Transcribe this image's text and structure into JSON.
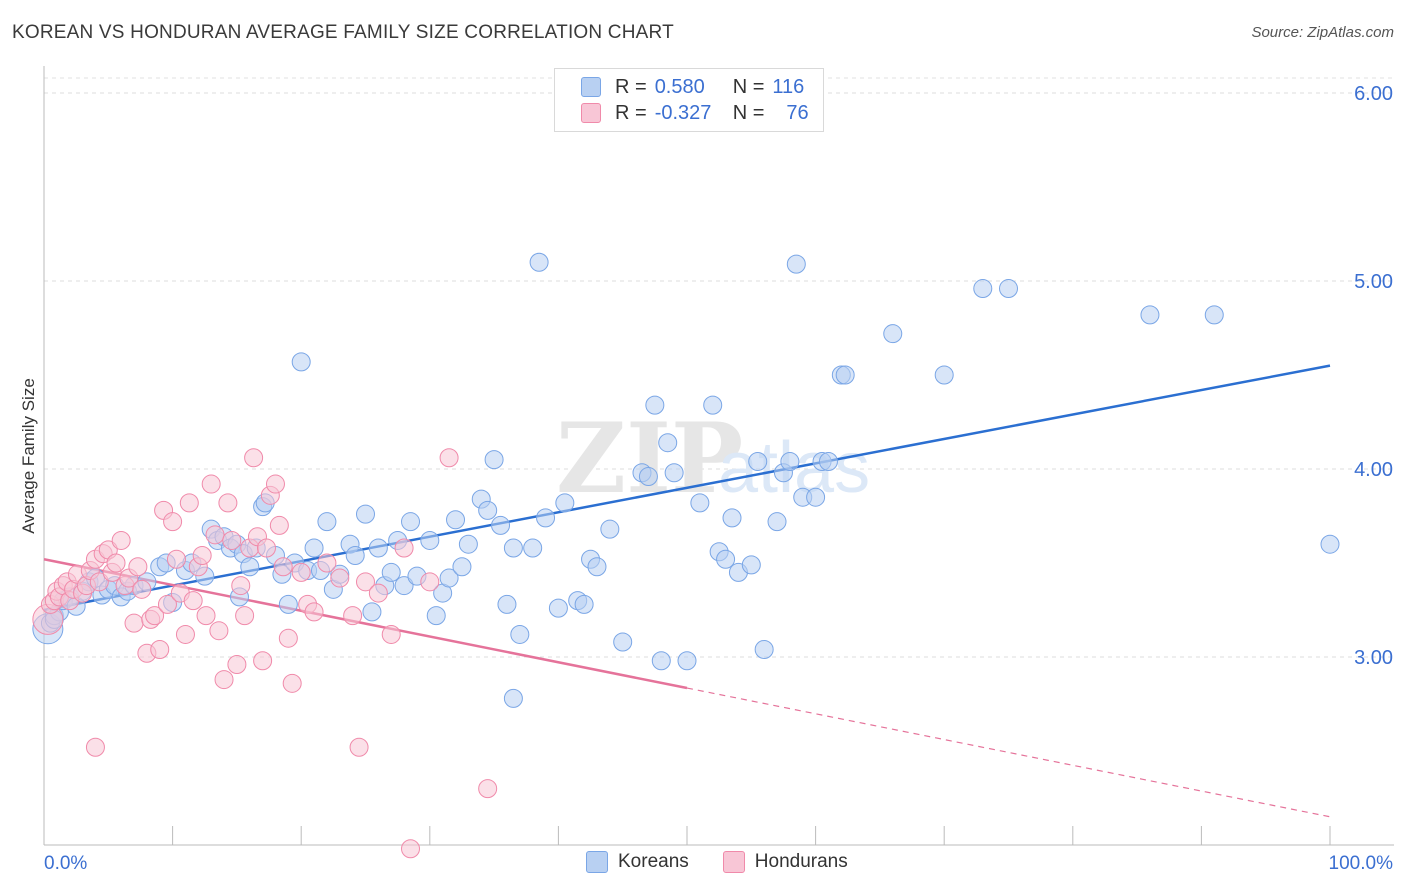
{
  "header": {
    "title": "KOREAN VS HONDURAN AVERAGE FAMILY SIZE CORRELATION CHART",
    "source": "Source: ZipAtlas.com"
  },
  "legend": {
    "rows": [
      {
        "r_label": "R =",
        "r_value": "0.580",
        "n_label": "N =",
        "n_value": "116"
      },
      {
        "r_label": "R =",
        "r_value": "-0.327",
        "n_label": "N =",
        "n_value": "76"
      }
    ],
    "items": [
      "Koreans",
      "Hondurans"
    ]
  },
  "colors": {
    "koreans": "#7aa6e6",
    "koreans_fill": "#b8d0f2",
    "koreans_line": "#2b6fd1",
    "hondurans": "#f08aaa",
    "hondurans_fill": "#f8c6d6",
    "hondurans_line": "#e5739a",
    "tick_text": "#3b6fd1"
  },
  "watermark": {
    "zip": "ZIP",
    "atlas": "atlas"
  },
  "chart_data": {
    "type": "scatter",
    "title": "KOREAN VS HONDURAN AVERAGE FAMILY SIZE CORRELATION CHART",
    "xlabel": "",
    "ylabel": "Average Family Size",
    "xlim": [
      0,
      100
    ],
    "ylim": [
      2.0,
      6.08
    ],
    "x_tick_labels": [
      "0.0%",
      "100.0%"
    ],
    "y_ticks": [
      3.0,
      4.0,
      5.0,
      6.0
    ],
    "y_tick_labels": [
      "3.00",
      "4.00",
      "5.00",
      "6.00"
    ],
    "grid": true,
    "legend_position": "top-center",
    "series": [
      {
        "name": "Koreans",
        "r": 0.58,
        "n": 116,
        "trend": {
          "x": [
            0,
            100
          ],
          "y": [
            3.25,
            4.55
          ],
          "dashed_from": null
        },
        "points": [
          [
            0.3,
            3.15
          ],
          [
            0.5,
            3.18
          ],
          [
            0.8,
            3.22
          ],
          [
            1.2,
            3.24
          ],
          [
            1.5,
            3.3
          ],
          [
            2.0,
            3.32
          ],
          [
            2.5,
            3.27
          ],
          [
            3.0,
            3.35
          ],
          [
            3.5,
            3.4
          ],
          [
            4.0,
            3.42
          ],
          [
            4.5,
            3.33
          ],
          [
            5.0,
            3.36
          ],
          [
            5.5,
            3.38
          ],
          [
            6.0,
            3.32
          ],
          [
            6.5,
            3.35
          ],
          [
            7.0,
            3.38
          ],
          [
            8.0,
            3.4
          ],
          [
            9.0,
            3.48
          ],
          [
            9.5,
            3.5
          ],
          [
            10.0,
            3.29
          ],
          [
            11.0,
            3.46
          ],
          [
            11.5,
            3.5
          ],
          [
            12.5,
            3.43
          ],
          [
            13.0,
            3.68
          ],
          [
            13.5,
            3.62
          ],
          [
            14.0,
            3.64
          ],
          [
            14.5,
            3.58
          ],
          [
            15.0,
            3.6
          ],
          [
            15.5,
            3.55
          ],
          [
            15.2,
            3.32
          ],
          [
            16.0,
            3.48
          ],
          [
            16.5,
            3.58
          ],
          [
            17.0,
            3.8
          ],
          [
            17.2,
            3.82
          ],
          [
            18.0,
            3.54
          ],
          [
            18.5,
            3.44
          ],
          [
            19.0,
            3.28
          ],
          [
            19.5,
            3.5
          ],
          [
            20.0,
            4.57
          ],
          [
            20.5,
            3.46
          ],
          [
            21.0,
            3.58
          ],
          [
            21.5,
            3.46
          ],
          [
            22.0,
            3.72
          ],
          [
            22.5,
            3.36
          ],
          [
            23.0,
            3.44
          ],
          [
            23.8,
            3.6
          ],
          [
            24.2,
            3.54
          ],
          [
            25.0,
            3.76
          ],
          [
            25.5,
            3.24
          ],
          [
            26.0,
            3.58
          ],
          [
            26.5,
            3.38
          ],
          [
            27.0,
            3.45
          ],
          [
            27.5,
            3.62
          ],
          [
            28.0,
            3.38
          ],
          [
            28.5,
            3.72
          ],
          [
            29.0,
            3.43
          ],
          [
            30.0,
            3.62
          ],
          [
            30.5,
            3.22
          ],
          [
            31.0,
            3.34
          ],
          [
            31.5,
            3.42
          ],
          [
            32.0,
            3.73
          ],
          [
            32.5,
            3.48
          ],
          [
            33.0,
            3.6
          ],
          [
            34.0,
            3.84
          ],
          [
            34.5,
            3.78
          ],
          [
            35.0,
            4.05
          ],
          [
            35.5,
            3.7
          ],
          [
            36.0,
            3.28
          ],
          [
            36.5,
            3.58
          ],
          [
            37.0,
            3.12
          ],
          [
            38.0,
            3.58
          ],
          [
            38.5,
            5.1
          ],
          [
            39.0,
            3.74
          ],
          [
            40.0,
            3.26
          ],
          [
            40.5,
            3.82
          ],
          [
            41.5,
            3.3
          ],
          [
            42.0,
            3.28
          ],
          [
            42.5,
            3.52
          ],
          [
            43.0,
            3.48
          ],
          [
            44.0,
            3.68
          ],
          [
            45.0,
            3.08
          ],
          [
            46.5,
            3.98
          ],
          [
            47.0,
            3.96
          ],
          [
            47.5,
            4.34
          ],
          [
            48.0,
            2.98
          ],
          [
            48.5,
            4.14
          ],
          [
            49.0,
            3.98
          ],
          [
            50.0,
            2.98
          ],
          [
            51.0,
            3.82
          ],
          [
            52.0,
            4.34
          ],
          [
            52.5,
            3.56
          ],
          [
            53.0,
            3.52
          ],
          [
            53.5,
            3.74
          ],
          [
            54.0,
            3.45
          ],
          [
            55.0,
            3.49
          ],
          [
            55.5,
            4.04
          ],
          [
            56.0,
            3.04
          ],
          [
            57.0,
            3.72
          ],
          [
            57.5,
            3.98
          ],
          [
            58.0,
            4.04
          ],
          [
            58.5,
            5.09
          ],
          [
            59.0,
            3.85
          ],
          [
            60.0,
            3.85
          ],
          [
            60.5,
            4.04
          ],
          [
            61.0,
            4.04
          ],
          [
            62.0,
            4.5
          ],
          [
            62.3,
            4.5
          ],
          [
            66.0,
            4.72
          ],
          [
            70.0,
            4.5
          ],
          [
            73.0,
            4.96
          ],
          [
            75.0,
            4.96
          ],
          [
            86.0,
            4.82
          ],
          [
            91.0,
            4.82
          ],
          [
            100.0,
            3.6
          ],
          [
            0.8,
            3.2
          ],
          [
            36.5,
            2.78
          ]
        ]
      },
      {
        "name": "Hondurans",
        "r": -0.327,
        "n": 76,
        "trend": {
          "x": [
            0,
            100
          ],
          "y": [
            3.52,
            2.15
          ],
          "dashed_from": 50
        },
        "points": [
          [
            0.3,
            3.2
          ],
          [
            0.5,
            3.28
          ],
          [
            0.8,
            3.3
          ],
          [
            1.0,
            3.35
          ],
          [
            1.2,
            3.32
          ],
          [
            1.5,
            3.38
          ],
          [
            1.8,
            3.4
          ],
          [
            2.0,
            3.3
          ],
          [
            2.3,
            3.36
          ],
          [
            2.6,
            3.44
          ],
          [
            3.0,
            3.34
          ],
          [
            3.3,
            3.38
          ],
          [
            3.6,
            3.46
          ],
          [
            4.0,
            3.52
          ],
          [
            4.3,
            3.4
          ],
          [
            4.6,
            3.55
          ],
          [
            5.0,
            3.57
          ],
          [
            5.3,
            3.45
          ],
          [
            5.6,
            3.5
          ],
          [
            6.0,
            3.62
          ],
          [
            6.3,
            3.38
          ],
          [
            6.6,
            3.42
          ],
          [
            7.0,
            3.18
          ],
          [
            7.3,
            3.48
          ],
          [
            7.6,
            3.36
          ],
          [
            8.0,
            3.02
          ],
          [
            8.3,
            3.2
          ],
          [
            8.6,
            3.22
          ],
          [
            9.0,
            3.04
          ],
          [
            9.3,
            3.78
          ],
          [
            9.6,
            3.28
          ],
          [
            10.0,
            3.72
          ],
          [
            10.3,
            3.52
          ],
          [
            10.6,
            3.34
          ],
          [
            11.0,
            3.12
          ],
          [
            11.3,
            3.82
          ],
          [
            11.6,
            3.3
          ],
          [
            12.0,
            3.48
          ],
          [
            12.3,
            3.54
          ],
          [
            12.6,
            3.22
          ],
          [
            13.0,
            3.92
          ],
          [
            13.3,
            3.65
          ],
          [
            13.6,
            3.14
          ],
          [
            14.0,
            2.88
          ],
          [
            14.3,
            3.82
          ],
          [
            14.6,
            3.62
          ],
          [
            15.0,
            2.96
          ],
          [
            15.3,
            3.38
          ],
          [
            15.6,
            3.22
          ],
          [
            16.0,
            3.58
          ],
          [
            16.3,
            4.06
          ],
          [
            16.6,
            3.64
          ],
          [
            17.0,
            2.98
          ],
          [
            17.3,
            3.58
          ],
          [
            17.6,
            3.86
          ],
          [
            18.0,
            3.92
          ],
          [
            18.3,
            3.7
          ],
          [
            18.6,
            3.48
          ],
          [
            19.0,
            3.1
          ],
          [
            19.3,
            2.86
          ],
          [
            20.0,
            3.45
          ],
          [
            20.5,
            3.28
          ],
          [
            21.0,
            3.24
          ],
          [
            22.0,
            3.5
          ],
          [
            23.0,
            3.42
          ],
          [
            24.0,
            3.22
          ],
          [
            24.5,
            2.52
          ],
          [
            25.0,
            3.4
          ],
          [
            26.0,
            3.34
          ],
          [
            27.0,
            3.12
          ],
          [
            28.0,
            3.58
          ],
          [
            28.5,
            1.98
          ],
          [
            30.0,
            3.4
          ],
          [
            31.5,
            4.06
          ],
          [
            34.5,
            2.3
          ],
          [
            4.0,
            2.52
          ]
        ]
      }
    ]
  }
}
